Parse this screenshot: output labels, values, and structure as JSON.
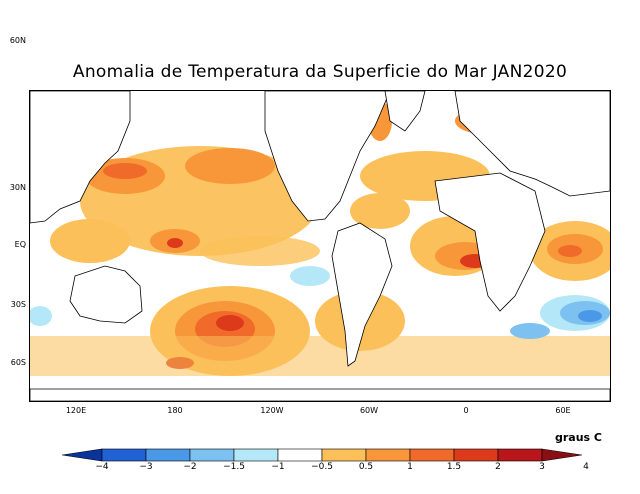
{
  "title": "Anomalia de Temperatura da Superficie do Mar JAN2020",
  "lat_labels": [
    "60N",
    "30N",
    "EQ",
    "30S",
    "60S"
  ],
  "lon_labels": [
    "120E",
    "180",
    "120W",
    "60W",
    "0",
    "60E"
  ],
  "units": "graus C",
  "colorbar": {
    "labels": [
      "−4",
      "−3",
      "−2",
      "−1.5",
      "−1",
      "−0.5",
      "0.5",
      "1",
      "1.5",
      "2",
      "3",
      "4"
    ],
    "colors": [
      "#08349c",
      "#2161d6",
      "#4a98e8",
      "#7cc1f0",
      "#b4e8f8",
      "#ffffff",
      "#fbc059",
      "#f8963a",
      "#f06a2a",
      "#dc3a1a",
      "#b8161a",
      "#8a0f12"
    ]
  },
  "map_data": {
    "projection": "equirectangular",
    "lon_range": [
      90,
      440
    ],
    "lat_range": [
      -85,
      84
    ],
    "variable": "sea surface temperature anomaly",
    "month": "JAN2020"
  }
}
